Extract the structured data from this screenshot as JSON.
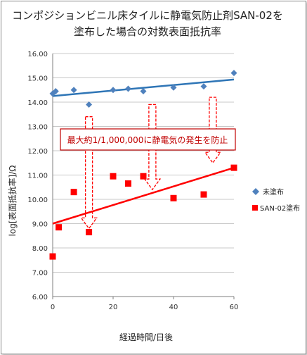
{
  "chart_data": {
    "type": "scatter",
    "title_line1": "コンポジションビニル床タイルに静電気防止剤SAN-02を",
    "title_line2": "塗布した場合の対数表面抵抗率",
    "xlabel": "経過時間/日後",
    "ylabel": "log[表面抵抗率]/Ω",
    "xlim": [
      0,
      60
    ],
    "ylim": [
      6.0,
      16.0
    ],
    "xticks": [
      0,
      20,
      40,
      60
    ],
    "yticks": [
      "6.00",
      "7.00",
      "8.00",
      "9.00",
      "10.00",
      "11.00",
      "12.00",
      "13.00",
      "14.00",
      "15.00",
      "16.00"
    ],
    "grid": true,
    "legend_position": "right",
    "annotation": "最大約1/1,000,000に静電気の発生を防止",
    "series": [
      {
        "name": "未塗布",
        "marker": "diamond",
        "color": "#4f81bd",
        "trend_color": "#2e75b6",
        "points": [
          [
            0,
            14.35
          ],
          [
            1,
            14.45
          ],
          [
            7,
            14.5
          ],
          [
            12,
            13.9
          ],
          [
            20,
            14.5
          ],
          [
            25,
            14.55
          ],
          [
            30,
            14.45
          ],
          [
            40,
            14.6
          ],
          [
            50,
            14.65
          ],
          [
            60,
            15.2
          ]
        ],
        "trend": [
          [
            0,
            14.25
          ],
          [
            60,
            14.93
          ]
        ]
      },
      {
        "name": "SAN-02塗布",
        "marker": "square",
        "color": "#ff0000",
        "trend_color": "#ff0000",
        "points": [
          [
            0,
            7.65
          ],
          [
            2,
            8.85
          ],
          [
            7,
            10.3
          ],
          [
            12,
            8.65
          ],
          [
            20,
            10.95
          ],
          [
            25,
            10.65
          ],
          [
            30,
            10.95
          ],
          [
            40,
            10.05
          ],
          [
            50,
            10.2
          ],
          [
            60,
            11.3
          ]
        ],
        "trend": [
          [
            0,
            9.0
          ],
          [
            60,
            11.3
          ]
        ]
      }
    ]
  }
}
